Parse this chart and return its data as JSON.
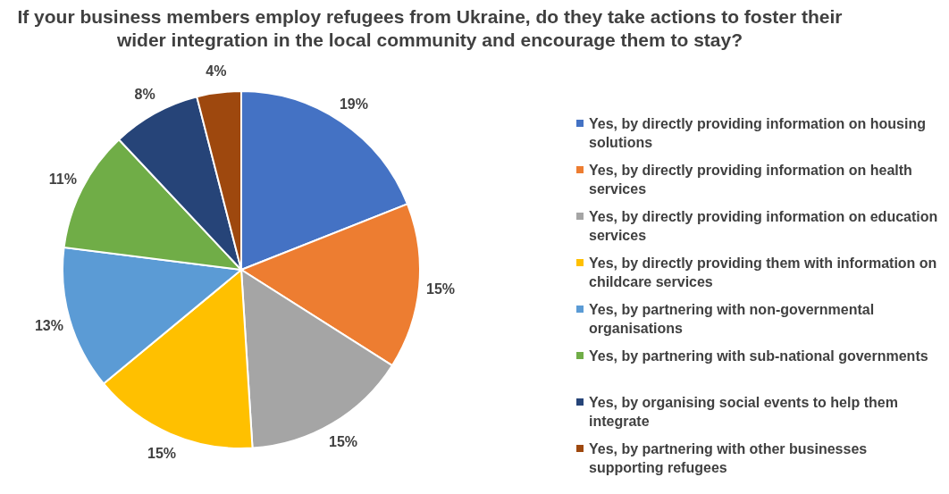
{
  "chart_data": {
    "type": "pie",
    "title": "If your business members employ refugees from Ukraine, do they take actions to foster their wider integration in the local community and encourage them to stay?",
    "categories": [
      "Yes, by directly providing information on housing solutions",
      "Yes, by directly providing information on health services",
      "Yes, by directly providing information on education services",
      "Yes, by directly providing them with information on childcare services",
      "Yes, by partnering with non-governmental organisations",
      "Yes, by partnering with sub-national governments",
      "Yes, by organising social events to help them integrate",
      "Yes, by partnering with other businesses supporting refugees"
    ],
    "values": [
      19,
      15,
      15,
      15,
      13,
      11,
      8,
      4
    ],
    "value_labels": [
      "19%",
      "15%",
      "15%",
      "15%",
      "13%",
      "11%",
      "8%",
      "4%"
    ],
    "colors": [
      "#4472c4",
      "#ed7d31",
      "#a5a5a5",
      "#ffc000",
      "#5b9bd5",
      "#70ad47",
      "#264478",
      "#9e480e"
    ],
    "legend": "right"
  }
}
